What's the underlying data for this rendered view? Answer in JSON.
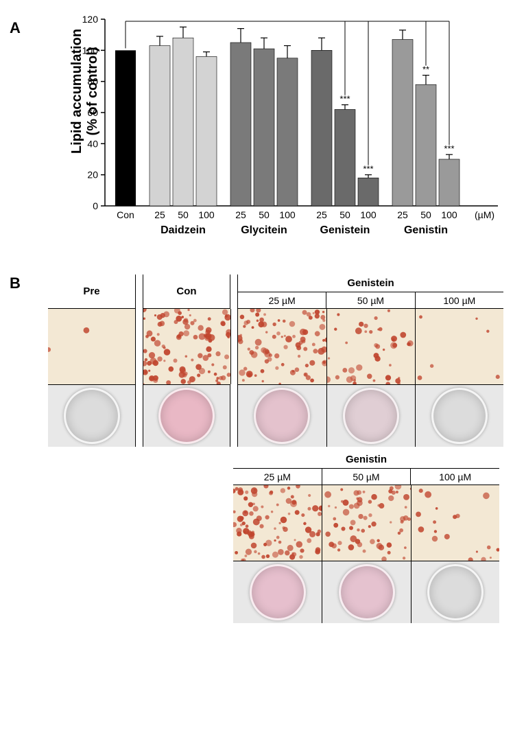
{
  "panelA": {
    "label": "A",
    "chart": {
      "type": "bar",
      "ylabel_line1": "Lipid accumulation",
      "ylabel_line2": "(% of control)",
      "ylim": [
        0,
        120
      ],
      "ytick_step": 20,
      "xunit_label": "(µM)",
      "control": {
        "label": "Con",
        "value": 100,
        "error": 0,
        "color": "#000000"
      },
      "groups": [
        {
          "name": "Daidzein",
          "color": "#d3d3d3",
          "bars": [
            {
              "dose": "25",
              "value": 103,
              "error": 6,
              "sig": ""
            },
            {
              "dose": "50",
              "value": 108,
              "error": 7,
              "sig": ""
            },
            {
              "dose": "100",
              "value": 96,
              "error": 3,
              "sig": ""
            }
          ]
        },
        {
          "name": "Glycitein",
          "color": "#7a7a7a",
          "bars": [
            {
              "dose": "25",
              "value": 105,
              "error": 9,
              "sig": ""
            },
            {
              "dose": "50",
              "value": 101,
              "error": 7,
              "sig": ""
            },
            {
              "dose": "100",
              "value": 95,
              "error": 8,
              "sig": ""
            }
          ]
        },
        {
          "name": "Genistein",
          "color": "#6a6a6a",
          "bars": [
            {
              "dose": "25",
              "value": 100,
              "error": 8,
              "sig": ""
            },
            {
              "dose": "50",
              "value": 62,
              "error": 3,
              "sig": "***"
            },
            {
              "dose": "100",
              "value": 18,
              "error": 2,
              "sig": "***"
            }
          ]
        },
        {
          "name": "Genistin",
          "color": "#9a9a9a",
          "bars": [
            {
              "dose": "25",
              "value": 107,
              "error": 6,
              "sig": ""
            },
            {
              "dose": "50",
              "value": 78,
              "error": 6,
              "sig": "**"
            },
            {
              "dose": "100",
              "value": 30,
              "error": 3,
              "sig": "***"
            }
          ]
        }
      ],
      "label_fontsize": 14,
      "axis_color": "#000000",
      "grid_color": "#ffffff",
      "background_color": "#ffffff"
    }
  },
  "panelB": {
    "label": "B",
    "row1": {
      "pre": {
        "header": "Pre",
        "micro_bg": "#f3e8d4",
        "dish_bg": "#dcdcdc",
        "stain_intensity": 0.02
      },
      "con": {
        "header": "Con",
        "micro_bg": "#f3e8d4",
        "dish_bg": "#e9b8c5",
        "stain_intensity": 0.85
      },
      "treatment": {
        "header": "Genistein",
        "doses": [
          "25 µM",
          "50 µM",
          "100 µM"
        ],
        "micro_bg": "#f3e8d4",
        "stain_intensity": [
          0.75,
          0.35,
          0.05
        ],
        "dish_bg": [
          "#e4c2cd",
          "#e0ced4",
          "#dcdcdc"
        ]
      }
    },
    "row2": {
      "treatment": {
        "header": "Genistin",
        "doses": [
          "25 µM",
          "50 µM",
          "100 µM"
        ],
        "micro_bg": "#f3e8d4",
        "stain_intensity": [
          0.8,
          0.55,
          0.15
        ],
        "dish_bg": [
          "#e6bfcd",
          "#e5c2cf",
          "#dcdcdc"
        ]
      }
    }
  }
}
